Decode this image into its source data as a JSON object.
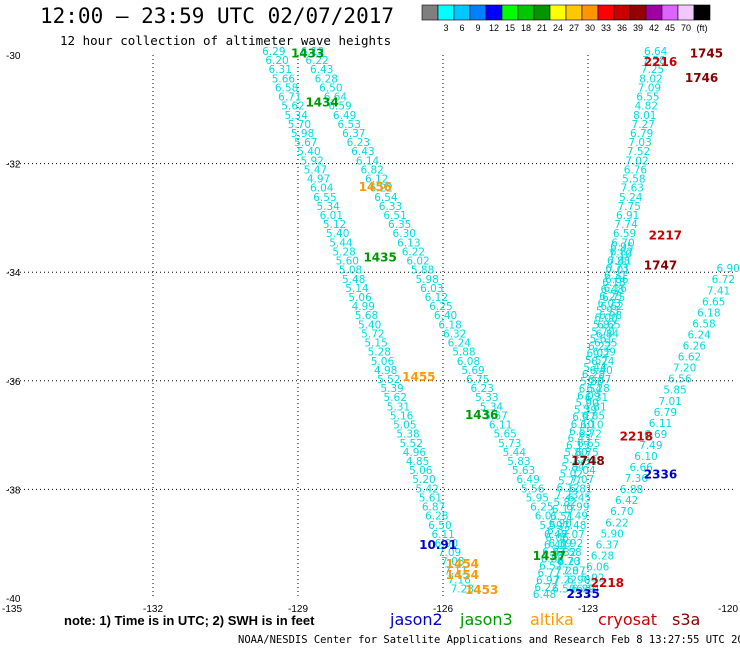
{
  "title": "12:00 – 23:59 UTC 02/07/2017",
  "subtitle": "12 hour collection of altimeter wave heights",
  "credit": "NOAA/NESDIS Center for Satellite Applications and Research    Feb  8 13:27:55 UTC 2017",
  "note": "note: 1) Time is in UTC; 2) SWH is in feet",
  "legend": {
    "unit": "(ft)",
    "stops": [
      {
        "label": "",
        "color": "#7f7f7f"
      },
      {
        "label": "3",
        "color": "#00ffff"
      },
      {
        "label": "6",
        "color": "#00c8ff"
      },
      {
        "label": "9",
        "color": "#0080ff"
      },
      {
        "label": "12",
        "color": "#0000ff"
      },
      {
        "label": "15",
        "color": "#00ff00"
      },
      {
        "label": "18",
        "color": "#00c800"
      },
      {
        "label": "21",
        "color": "#009600"
      },
      {
        "label": "24",
        "color": "#ffff00"
      },
      {
        "label": "27",
        "color": "#ffc800"
      },
      {
        "label": "30",
        "color": "#ff9600"
      },
      {
        "label": "33",
        "color": "#ff0000"
      },
      {
        "label": "36",
        "color": "#c80000"
      },
      {
        "label": "39",
        "color": "#960000"
      },
      {
        "label": "42",
        "color": "#a000a0"
      },
      {
        "label": "45",
        "color": "#dc64ff"
      },
      {
        "label": "70",
        "color": "#f0c8ff"
      },
      {
        "label": "",
        "color": "#000000"
      }
    ]
  },
  "satellites": [
    {
      "name": "jason2",
      "color": "#0000cc"
    },
    {
      "name": "jason3",
      "color": "#009900"
    },
    {
      "name": "altika",
      "color": "#ff9900"
    },
    {
      "name": "cryosat",
      "color": "#cc0000"
    },
    {
      "name": "s3a",
      "color": "#880000"
    }
  ],
  "map": {
    "lon_range": [
      -135,
      -120
    ],
    "lat_range": [
      -40,
      -30
    ],
    "lon_ticks": [
      "-135",
      "-132",
      "-129",
      "-126",
      "-123",
      "-120"
    ],
    "lat_ticks": [
      "-30",
      "-32",
      "-34",
      "-36",
      "-38",
      "-40"
    ],
    "swh_color": "#00dddd"
  },
  "pass_labels": [
    {
      "text": "1433",
      "lon": -128.8,
      "lat": -30.05,
      "sat": "jason3"
    },
    {
      "text": "1434",
      "lon": -128.5,
      "lat": -30.95,
      "sat": "jason3"
    },
    {
      "text": "1435",
      "lon": -127.3,
      "lat": -33.8,
      "sat": "jason3"
    },
    {
      "text": "1436",
      "lon": -125.2,
      "lat": -36.7,
      "sat": "jason3"
    },
    {
      "text": "1437",
      "lon": -123.8,
      "lat": -39.3,
      "sat": "jason3"
    },
    {
      "text": "1456",
      "lon": -127.4,
      "lat": -32.5,
      "sat": "altika"
    },
    {
      "text": "1455",
      "lon": -126.5,
      "lat": -36.0,
      "sat": "altika"
    },
    {
      "text": "1454",
      "lon": -125.6,
      "lat": -39.45,
      "sat": "altika"
    },
    {
      "text": "1454",
      "lon": -125.6,
      "lat": -39.65,
      "sat": "altika"
    },
    {
      "text": "1453",
      "lon": -125.2,
      "lat": -39.93,
      "sat": "altika"
    },
    {
      "text": "1745",
      "lon": -120.55,
      "lat": -30.05,
      "sat": "s3a"
    },
    {
      "text": "1746",
      "lon": -120.65,
      "lat": -30.5,
      "sat": "s3a"
    },
    {
      "text": "1747",
      "lon": -121.5,
      "lat": -33.95,
      "sat": "s3a"
    },
    {
      "text": "1748",
      "lon": -123.0,
      "lat": -37.55,
      "sat": "s3a"
    },
    {
      "text": "2216",
      "lon": -121.5,
      "lat": -30.2,
      "sat": "cryosat"
    },
    {
      "text": "2217",
      "lon": -121.4,
      "lat": -33.4,
      "sat": "cryosat"
    },
    {
      "text": "2218",
      "lon": -122.0,
      "lat": -37.1,
      "sat": "cryosat"
    },
    {
      "text": "2218",
      "lon": -122.6,
      "lat": -39.8,
      "sat": "cryosat"
    },
    {
      "text": "2335",
      "lon": -123.1,
      "lat": -40.0,
      "sat": "jason2"
    },
    {
      "text": "2336",
      "lon": -121.5,
      "lat": -37.8,
      "sat": "jason2"
    },
    {
      "text": "10.91",
      "lon": -126.1,
      "lat": -39.1,
      "sat": "jason2"
    }
  ],
  "tracks": [
    {
      "name": "jason3-1433",
      "values": [
        "6.29",
        "6.20",
        "6.31",
        "5.66",
        "6.58",
        "6.71",
        "5.62",
        "5.34",
        "5.70",
        "5.98",
        "5.67",
        "5.40",
        "5.92",
        "5.47",
        "4.97",
        "6.04",
        "6.55",
        "5.34",
        "6.01",
        "5.12",
        "5.40",
        "5.44",
        "5.28",
        "5.60",
        "5.08",
        "5.48",
        "5.14",
        "5.06",
        "4.99",
        "5.68",
        "5.40",
        "5.72",
        "5.15",
        "5.28",
        "5.06",
        "4.98",
        "5.52",
        "5.39",
        "5.62",
        "5.31",
        "5.16",
        "5.05",
        "5.38",
        "5.52",
        "4.96",
        "4.85",
        "5.06",
        "5.20",
        "5.42",
        "5.61",
        "6.87",
        "6.28",
        "6.50",
        "6.11",
        "6.90",
        "7.09",
        "7.08",
        "7.11",
        "7.16",
        "7.23"
      ],
      "lon": [
        -129.5,
        -125.6
      ],
      "lat": [
        -30.0,
        -39.9
      ]
    },
    {
      "name": "jason3-1434",
      "values": [
        "6.13",
        "6.22",
        "6.43",
        "6.28",
        "6.50",
        "6.64",
        "6.59",
        "6.49",
        "6.53",
        "6.37",
        "6.23",
        "6.43",
        "6.14",
        "6.82",
        "6.12",
        "6.22",
        "6.54",
        "6.33",
        "6.51",
        "6.35",
        "6.30",
        "6.13",
        "6.22",
        "6.02",
        "5.88",
        "5.98",
        "6.03",
        "6.12",
        "6.25",
        "6.40",
        "6.18",
        "6.32",
        "6.24",
        "5.88",
        "6.08",
        "5.69",
        "6.75",
        "6.23",
        "5.33",
        "5.34",
        "5.67",
        "6.11",
        "5.65",
        "5.73",
        "5.44",
        "5.83",
        "5.63",
        "6.49",
        "5.56",
        "5.95",
        "6.25",
        "6.01",
        "5.59",
        "6.48",
        "6.39",
        "6.32",
        "6.23",
        "7.07",
        "6.90",
        "6.89"
      ],
      "lon": [
        -128.7,
        -123.1
      ],
      "lat": [
        -30.0,
        -39.9
      ]
    },
    {
      "name": "s3a-1745",
      "values": [
        "6.64",
        "7.58",
        "7.25",
        "8.02",
        "7.09",
        "6.55",
        "4.82",
        "8.01",
        "7.27",
        "6.79",
        "7.03",
        "7.52",
        "7.02",
        "6.76",
        "5.58",
        "7.63",
        "5.24",
        "7.75",
        "6.91",
        "7.74",
        "6.59",
        "6.70",
        "6.82",
        "7.41",
        "7.01",
        "6.86",
        "6.16",
        "6.75",
        "6.62",
        "6.98",
        "6.65",
        "6.84",
        "6.55",
        "6.39",
        "6.24",
        "6.40",
        "6.87",
        "6.28",
        "6.31",
        "4.81",
        "6.85",
        "6.10",
        "6.72",
        "6.65",
        "6.75",
        "6.34",
        "7.04",
        "7.07",
        "6.81",
        "6.45",
        "6.99",
        "7.49",
        "7.48",
        "7.07",
        "6.92",
        "7.58",
        "6.70",
        "7.28",
        "7.22",
        "6.50"
      ],
      "lon": [
        -121.6,
        -123.5
      ],
      "lat": [
        -30.0,
        -39.9
      ]
    },
    {
      "name": "cryosat-2216",
      "values": [
        "6.95",
        "7.10",
        "6.88",
        "6.73",
        "6.31",
        "6.18",
        "6.48",
        "6.25",
        "6.03",
        "5.93",
        "6.00",
        "5.82",
        "5.70",
        "5.61",
        "6.22",
        "6.02",
        "5.57",
        "5.44",
        "6.28",
        "5.80",
        "6.54",
        "6.09",
        "5.90",
        "5.39",
        "6.97",
        "6.10",
        "6.55",
        "6.43",
        "6.15",
        "5.80",
        "5.22",
        "5.84",
        "5.02",
        "5.77",
        "6.12",
        "7.23",
        "5.82",
        "6.17",
        "6.51",
        "6.90",
        "6.32",
        "6.06",
        "6.43",
        "6.82",
        "6.88",
        "6.52",
        "6.77",
        "6.97",
        "6.22",
        "6.48"
      ],
      "lon": [
        -122.3,
        -123.9
      ],
      "lat": [
        -33.6,
        -40.0
      ]
    },
    {
      "name": "s3a-1747",
      "values": [
        "6.90",
        "6.72",
        "7.41",
        "6.65",
        "6.18",
        "6.58",
        "6.24",
        "6.26",
        "6.62",
        "7.20",
        "6.56",
        "5.85",
        "7.01",
        "6.79",
        "6.11",
        "6.69",
        "7.49",
        "6.10",
        "6.66",
        "7.36",
        "6.88",
        "6.42",
        "6.70",
        "6.22",
        "5.90",
        "6.37",
        "6.28",
        "6.06",
        "5.92",
        "6.14"
      ],
      "lon": [
        -120.1,
        -123.0
      ],
      "lat": [
        -34.0,
        -39.9
      ]
    }
  ]
}
